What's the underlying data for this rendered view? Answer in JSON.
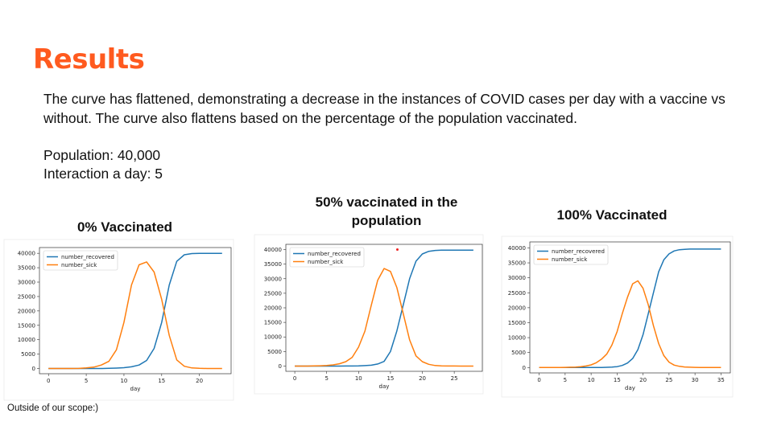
{
  "slide": {
    "title": "Results",
    "intro": "The curve has flattened, demonstrating a decrease in the instances of COVID cases per day with a vaccine vs without. The curve also flattens based on the percentage of the population vaccinated.",
    "population": "Population: 40,000",
    "interaction": "Interaction a day: 5",
    "footnote": "Outside of our scope:)"
  },
  "chart_titles": {
    "c0": "0% Vaccinated",
    "c50_line1": "50% vaccinated in the",
    "c50_line2": "population",
    "c100": "100% Vaccinated"
  },
  "colors": {
    "recovered": "#1f77b4",
    "sick": "#ff7f0e",
    "accent": "#ff5a1f"
  },
  "chart_data": [
    {
      "type": "line",
      "title": "0% Vaccinated",
      "xlabel": "day",
      "ylabel": "",
      "xlim": [
        -1.2,
        24.2
      ],
      "ylim": [
        -1800,
        42000
      ],
      "xticks": [
        0,
        5,
        10,
        15,
        20
      ],
      "yticks": [
        0,
        5000,
        10000,
        15000,
        20000,
        25000,
        30000,
        35000,
        40000
      ],
      "legend": "top-left",
      "series": [
        {
          "name": "number_recovered",
          "x": [
            0,
            1,
            2,
            3,
            4,
            5,
            6,
            7,
            8,
            9,
            10,
            11,
            12,
            13,
            14,
            15,
            16,
            17,
            18,
            19,
            20,
            21,
            22,
            23
          ],
          "values": [
            0,
            0,
            0,
            0,
            0,
            0,
            0,
            20,
            60,
            150,
            300,
            600,
            1200,
            2800,
            7000,
            16000,
            29000,
            37200,
            39500,
            39900,
            40000,
            40000,
            40000,
            40000
          ]
        },
        {
          "name": "number_sick",
          "x": [
            0,
            1,
            2,
            3,
            4,
            5,
            6,
            7,
            8,
            9,
            10,
            11,
            12,
            13,
            14,
            15,
            16,
            17,
            18,
            19,
            20,
            21,
            22,
            23
          ],
          "values": [
            0,
            0,
            0,
            0,
            50,
            200,
            500,
            1200,
            2500,
            6500,
            16000,
            29000,
            36000,
            37000,
            33500,
            24000,
            11500,
            3000,
            800,
            200,
            60,
            20,
            0,
            0
          ]
        }
      ]
    },
    {
      "type": "line",
      "title": "50% vaccinated in the population",
      "xlabel": "day",
      "ylabel": "",
      "xlim": [
        -1.4,
        29.4
      ],
      "ylim": [
        -1800,
        41800
      ],
      "xticks": [
        0,
        5,
        10,
        15,
        20,
        25
      ],
      "yticks": [
        0,
        5000,
        10000,
        15000,
        20000,
        25000,
        30000,
        35000,
        40000
      ],
      "legend": "top-left",
      "series": [
        {
          "name": "number_recovered",
          "x": [
            0,
            1,
            2,
            3,
            4,
            5,
            6,
            7,
            8,
            9,
            10,
            11,
            12,
            13,
            14,
            15,
            16,
            17,
            18,
            19,
            20,
            21,
            22,
            23,
            24,
            25,
            26,
            27,
            28
          ],
          "values": [
            0,
            0,
            0,
            0,
            0,
            0,
            0,
            0,
            10,
            30,
            60,
            150,
            300,
            700,
            1600,
            5000,
            12000,
            21000,
            30000,
            36000,
            38500,
            39400,
            39700,
            39800,
            39800,
            39800,
            39800,
            39800,
            39800
          ]
        },
        {
          "name": "number_sick",
          "x": [
            0,
            1,
            2,
            3,
            4,
            5,
            6,
            7,
            8,
            9,
            10,
            11,
            12,
            13,
            14,
            15,
            16,
            17,
            18,
            19,
            20,
            21,
            22,
            23,
            24,
            25,
            26,
            27,
            28
          ],
          "values": [
            0,
            0,
            0,
            50,
            100,
            200,
            400,
            800,
            1500,
            3000,
            6500,
            12000,
            21000,
            29500,
            33500,
            32500,
            27000,
            18000,
            9000,
            3500,
            1500,
            600,
            200,
            80,
            30,
            10,
            0,
            0,
            0
          ]
        }
      ]
    },
    {
      "type": "line",
      "title": "100% Vaccinated",
      "xlabel": "day",
      "ylabel": "",
      "xlim": [
        -1.8,
        36.8
      ],
      "ylim": [
        -1800,
        42000
      ],
      "xticks": [
        0,
        5,
        10,
        15,
        20,
        25,
        30,
        35
      ],
      "yticks": [
        0,
        5000,
        10000,
        15000,
        20000,
        25000,
        30000,
        35000,
        40000
      ],
      "legend": "top-left",
      "series": [
        {
          "name": "number_recovered",
          "x": [
            0,
            1,
            2,
            3,
            4,
            5,
            6,
            7,
            8,
            9,
            10,
            11,
            12,
            13,
            14,
            15,
            16,
            17,
            18,
            19,
            20,
            21,
            22,
            23,
            24,
            25,
            26,
            27,
            28,
            29,
            30,
            31,
            32,
            33,
            34,
            35
          ],
          "values": [
            0,
            0,
            0,
            0,
            0,
            0,
            0,
            0,
            0,
            0,
            0,
            10,
            30,
            70,
            150,
            300,
            700,
            1500,
            3000,
            6000,
            11000,
            18000,
            25000,
            32000,
            36000,
            38000,
            39000,
            39400,
            39500,
            39600,
            39600,
            39600,
            39600,
            39600,
            39600,
            39600
          ]
        },
        {
          "name": "number_sick",
          "x": [
            0,
            1,
            2,
            3,
            4,
            5,
            6,
            7,
            8,
            9,
            10,
            11,
            12,
            13,
            14,
            15,
            16,
            17,
            18,
            19,
            20,
            21,
            22,
            23,
            24,
            25,
            26,
            27,
            28,
            29,
            30,
            31,
            32,
            33,
            34,
            35
          ],
          "values": [
            0,
            0,
            0,
            0,
            0,
            50,
            100,
            150,
            300,
            500,
            900,
            1600,
            2800,
            4500,
            7500,
            12000,
            18000,
            23500,
            28000,
            29000,
            26500,
            21000,
            14000,
            8000,
            4000,
            1800,
            800,
            400,
            200,
            100,
            50,
            20,
            0,
            0,
            0,
            0
          ]
        }
      ]
    }
  ]
}
